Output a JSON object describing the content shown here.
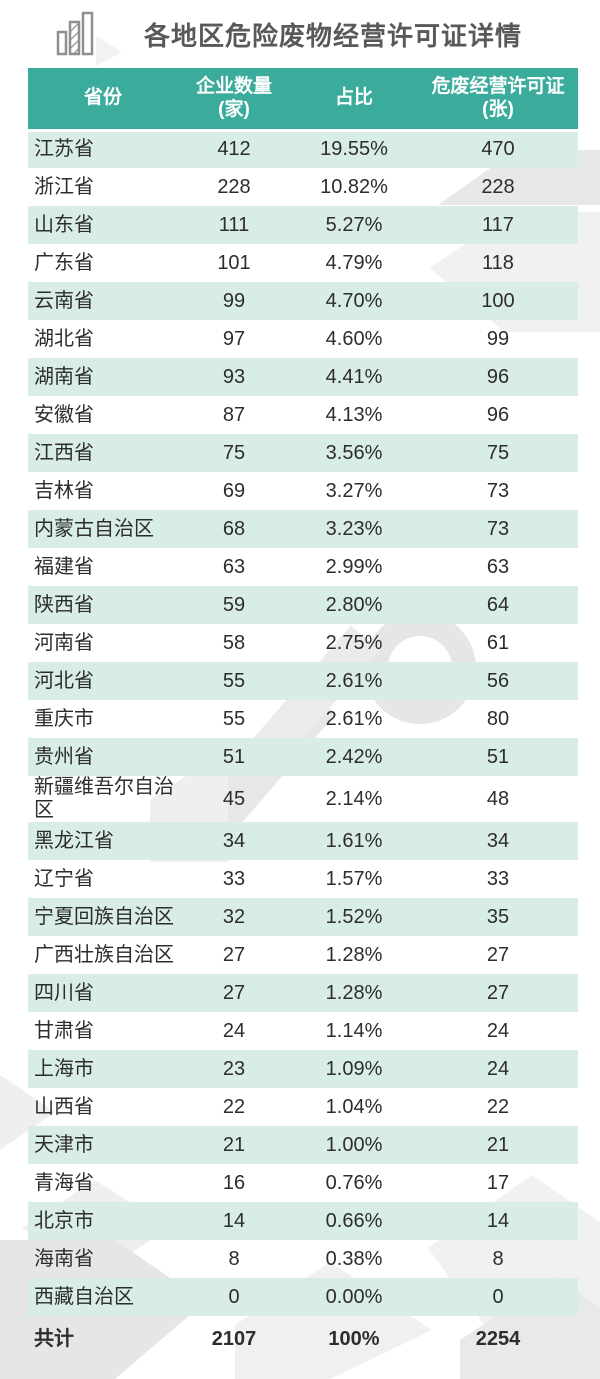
{
  "title": "各地区危险废物经营许可证详情",
  "icons": {
    "title_icon": "bar-chart-icon"
  },
  "colors": {
    "header_bg": "#3BAC9C",
    "row_alt_bg": "#D9EDE8",
    "header_text": "#FFFFFF",
    "body_text": "#2D2D2D",
    "title_text": "#595959",
    "watermark_gray": "#EAEAEA"
  },
  "chart_data": {
    "type": "table",
    "title": "各地区危险废物经营许可证详情",
    "columns": [
      {
        "label": "省份",
        "sub": ""
      },
      {
        "label": "企业数量",
        "sub": "(家)"
      },
      {
        "label": "占比",
        "sub": ""
      },
      {
        "label": "危废经营许可证",
        "sub": "(张)"
      }
    ],
    "rows": [
      {
        "province": "江苏省",
        "companies": "412",
        "share": "19.55%",
        "licenses": "470"
      },
      {
        "province": "浙江省",
        "companies": "228",
        "share": "10.82%",
        "licenses": "228"
      },
      {
        "province": "山东省",
        "companies": "111",
        "share": "5.27%",
        "licenses": "117"
      },
      {
        "province": "广东省",
        "companies": "101",
        "share": "4.79%",
        "licenses": "118"
      },
      {
        "province": "云南省",
        "companies": "99",
        "share": "4.70%",
        "licenses": "100"
      },
      {
        "province": "湖北省",
        "companies": "97",
        "share": "4.60%",
        "licenses": "99"
      },
      {
        "province": "湖南省",
        "companies": "93",
        "share": "4.41%",
        "licenses": "96"
      },
      {
        "province": "安徽省",
        "companies": "87",
        "share": "4.13%",
        "licenses": "96"
      },
      {
        "province": "江西省",
        "companies": "75",
        "share": "3.56%",
        "licenses": "75"
      },
      {
        "province": "吉林省",
        "companies": "69",
        "share": "3.27%",
        "licenses": "73"
      },
      {
        "province": "内蒙古自治区",
        "companies": "68",
        "share": "3.23%",
        "licenses": "73"
      },
      {
        "province": "福建省",
        "companies": "63",
        "share": "2.99%",
        "licenses": "63"
      },
      {
        "province": "陕西省",
        "companies": "59",
        "share": "2.80%",
        "licenses": "64"
      },
      {
        "province": "河南省",
        "companies": "58",
        "share": "2.75%",
        "licenses": "61"
      },
      {
        "province": "河北省",
        "companies": "55",
        "share": "2.61%",
        "licenses": "56"
      },
      {
        "province": "重庆市",
        "companies": "55",
        "share": "2.61%",
        "licenses": "80"
      },
      {
        "province": "贵州省",
        "companies": "51",
        "share": "2.42%",
        "licenses": "51"
      },
      {
        "province": "新疆维吾尔自治区",
        "companies": "45",
        "share": "2.14%",
        "licenses": "48"
      },
      {
        "province": "黑龙江省",
        "companies": "34",
        "share": "1.61%",
        "licenses": "34"
      },
      {
        "province": "辽宁省",
        "companies": "33",
        "share": "1.57%",
        "licenses": "33"
      },
      {
        "province": "宁夏回族自治区",
        "companies": "32",
        "share": "1.52%",
        "licenses": "35"
      },
      {
        "province": "广西壮族自治区",
        "companies": "27",
        "share": "1.28%",
        "licenses": "27"
      },
      {
        "province": "四川省",
        "companies": "27",
        "share": "1.28%",
        "licenses": "27"
      },
      {
        "province": "甘肃省",
        "companies": "24",
        "share": "1.14%",
        "licenses": "24"
      },
      {
        "province": "上海市",
        "companies": "23",
        "share": "1.09%",
        "licenses": "24"
      },
      {
        "province": "山西省",
        "companies": "22",
        "share": "1.04%",
        "licenses": "22"
      },
      {
        "province": "天津市",
        "companies": "21",
        "share": "1.00%",
        "licenses": "21"
      },
      {
        "province": "青海省",
        "companies": "16",
        "share": "0.76%",
        "licenses": "17"
      },
      {
        "province": "北京市",
        "companies": "14",
        "share": "0.66%",
        "licenses": "14"
      },
      {
        "province": "海南省",
        "companies": "8",
        "share": "0.38%",
        "licenses": "8"
      },
      {
        "province": "西藏自治区",
        "companies": "0",
        "share": "0.00%",
        "licenses": "0"
      }
    ],
    "total": {
      "label": "共计",
      "companies": "2107",
      "share": "100%",
      "licenses": "2254"
    }
  }
}
